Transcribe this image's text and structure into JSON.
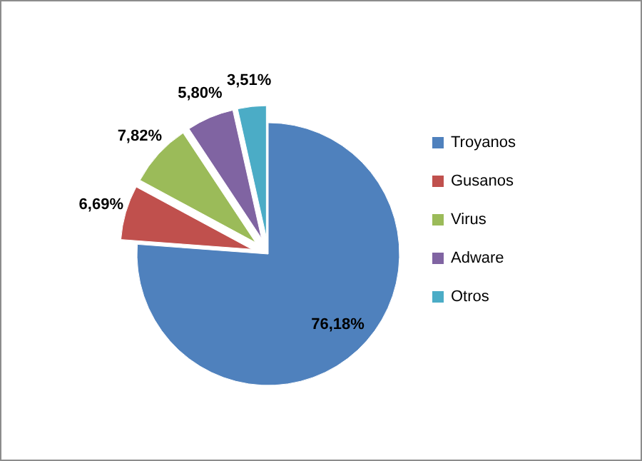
{
  "chart_data": {
    "type": "pie",
    "categories": [
      "Troyanos",
      "Gusanos",
      "Virus",
      "Adware",
      "Otros"
    ],
    "values": [
      76.18,
      6.69,
      7.82,
      5.8,
      3.51
    ],
    "colors": [
      "#4f81bd",
      "#c0504d",
      "#9bbb59",
      "#8064a2",
      "#4bacc6"
    ],
    "value_labels": [
      "76,18%",
      "6,69%",
      "7,82%",
      "5,80%",
      "3,51%"
    ],
    "legend": "right"
  }
}
